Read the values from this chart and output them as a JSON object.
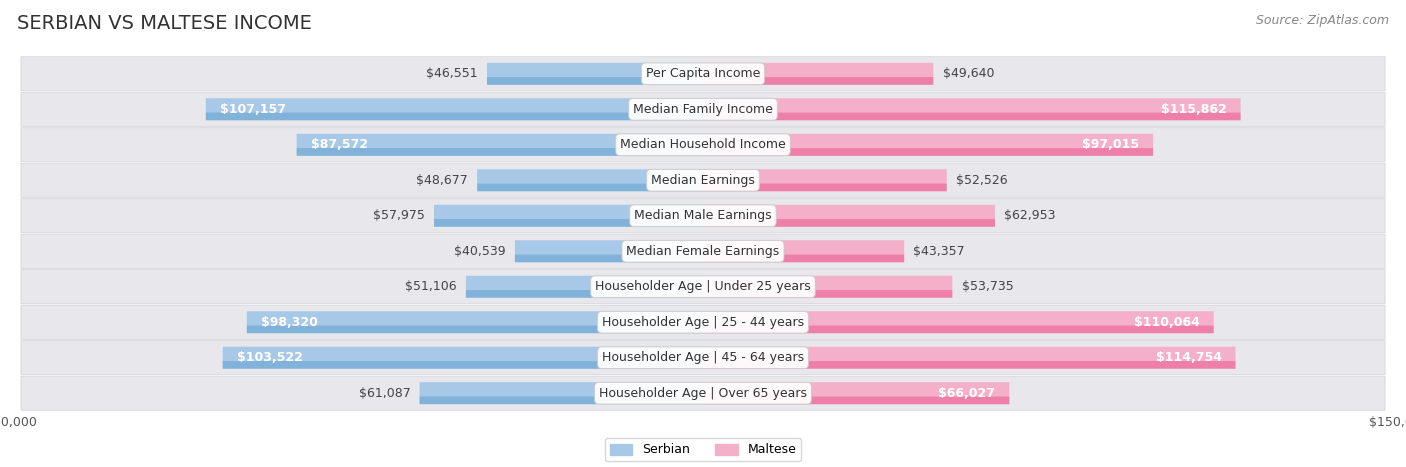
{
  "title": "SERBIAN VS MALTESE INCOME",
  "source": "Source: ZipAtlas.com",
  "categories": [
    "Per Capita Income",
    "Median Family Income",
    "Median Household Income",
    "Median Earnings",
    "Median Male Earnings",
    "Median Female Earnings",
    "Householder Age | Under 25 years",
    "Householder Age | 25 - 44 years",
    "Householder Age | 45 - 64 years",
    "Householder Age | Over 65 years"
  ],
  "serbian_values": [
    46551,
    107157,
    87572,
    48677,
    57975,
    40539,
    51106,
    98320,
    103522,
    61087
  ],
  "maltese_values": [
    49640,
    115862,
    97015,
    52526,
    62953,
    43357,
    53735,
    110064,
    114754,
    66027
  ],
  "serbian_labels": [
    "$46,551",
    "$107,157",
    "$87,572",
    "$48,677",
    "$57,975",
    "$40,539",
    "$51,106",
    "$98,320",
    "$103,522",
    "$61,087"
  ],
  "maltese_labels": [
    "$49,640",
    "$115,862",
    "$97,015",
    "$52,526",
    "$62,953",
    "$43,357",
    "$53,735",
    "$110,064",
    "$114,754",
    "$66,027"
  ],
  "serbian_color_light": "#a8c8e8",
  "serbian_color_dark": "#5b9dcc",
  "maltese_color_light": "#f4b0c8",
  "maltese_color_dark": "#e8508a",
  "max_value": 150000,
  "bar_height": 0.62,
  "row_bg_color": "#e8e8ec",
  "title_fontsize": 14,
  "source_fontsize": 9,
  "bar_label_fontsize": 9,
  "category_fontsize": 9,
  "axis_label_fontsize": 9,
  "legend_fontsize": 9,
  "inside_threshold": 65000
}
